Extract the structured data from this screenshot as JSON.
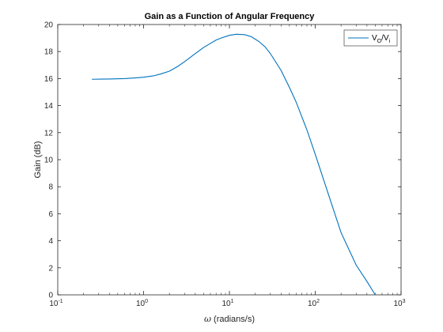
{
  "chart_data": {
    "type": "line",
    "title": "Gain as a Function of Angular Frequency",
    "xlabel_symbol": "ω",
    "xlabel_text": " (radians/s)",
    "ylabel": "Gain (dB)",
    "xscale": "log",
    "xlim": [
      0.1,
      1000
    ],
    "ylim": [
      0,
      20
    ],
    "grid": false,
    "legend_location": "top-right",
    "x_ticks": [
      {
        "mantissa": "10",
        "exponent": "-1"
      },
      {
        "mantissa": "10",
        "exponent": "0"
      },
      {
        "mantissa": "10",
        "exponent": "1"
      },
      {
        "mantissa": "10",
        "exponent": "2"
      },
      {
        "mantissa": "10",
        "exponent": "3"
      }
    ],
    "y_ticks": [
      "0",
      "2",
      "4",
      "6",
      "8",
      "10",
      "12",
      "14",
      "16",
      "18",
      "20"
    ],
    "series": [
      {
        "legend": {
          "v1": "V",
          "sub1": "O",
          "slash": "/",
          "v2": "V",
          "sub2": "i"
        },
        "color": "#0072BD",
        "x": [
          0.25,
          0.4,
          0.6,
          0.8,
          1.0,
          1.3,
          1.6,
          2.0,
          2.5,
          3.0,
          4.0,
          5.0,
          6.0,
          7.0,
          8.0,
          10,
          12,
          15,
          18,
          22,
          26,
          30,
          40,
          50,
          60,
          80,
          100,
          150,
          200,
          300,
          400,
          500
        ],
        "y": [
          15.95,
          15.97,
          16.0,
          16.05,
          16.1,
          16.2,
          16.35,
          16.55,
          16.9,
          17.25,
          17.85,
          18.3,
          18.6,
          18.85,
          19.0,
          19.2,
          19.28,
          19.25,
          19.1,
          18.75,
          18.35,
          17.85,
          16.6,
          15.35,
          14.25,
          12.2,
          10.4,
          7.0,
          4.6,
          2.2,
          1.0,
          0.0
        ]
      }
    ]
  }
}
